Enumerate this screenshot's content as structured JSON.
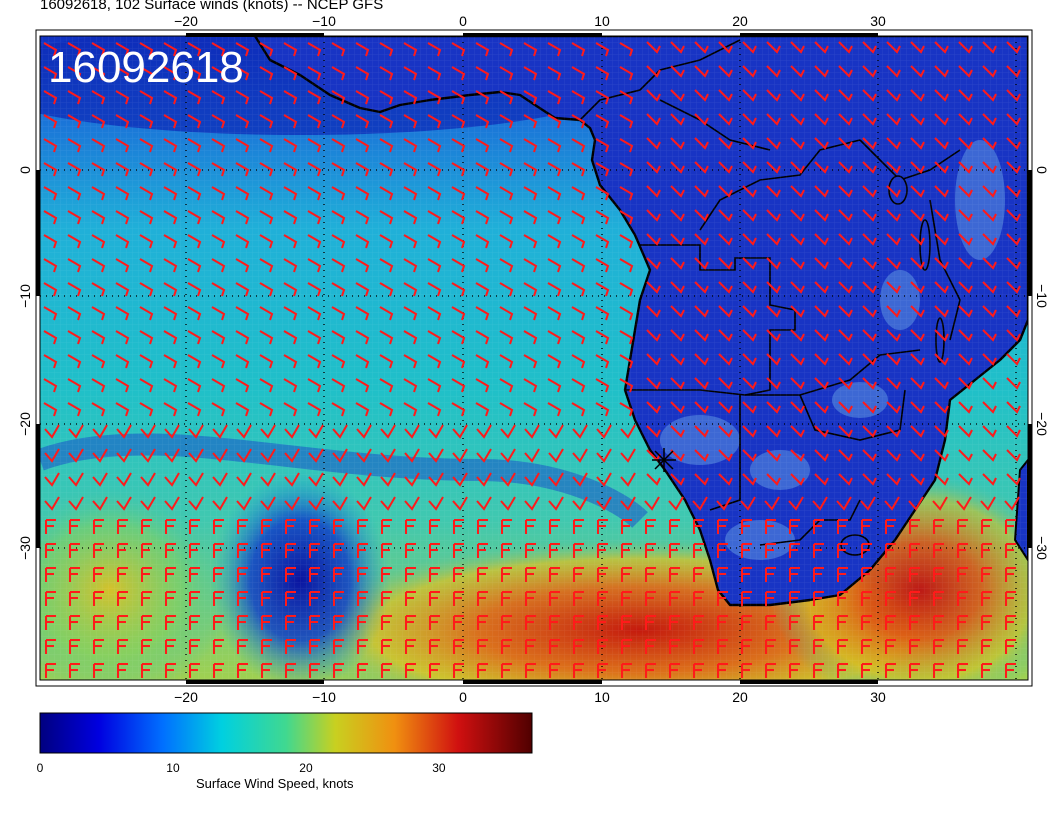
{
  "header": {
    "title": "16092618, 102 Surface winds (knots) -- NCEP GFS"
  },
  "map": {
    "stamp": "16092618",
    "lon_labels": [
      "−20",
      "−10",
      "0",
      "10",
      "20",
      "30"
    ],
    "lat_labels": [
      "0",
      "−10",
      "−20",
      "−30"
    ],
    "lon_range": [
      -30,
      40
    ],
    "lat_range": [
      -40,
      10
    ],
    "colors": {
      "ocean_low": "#0a1fa8",
      "ocean_mid": "#1ec8d0",
      "ocean_high": "#d04010",
      "land": "#1a34c8",
      "barbs": "#ff1a1a",
      "coast": "#000000"
    }
  },
  "colorbar": {
    "title": "Surface Wind Speed, knots",
    "ticks": [
      "0",
      "10",
      "20",
      "30"
    ],
    "tick_values": [
      0,
      10,
      20,
      30
    ],
    "range": [
      0,
      37
    ]
  }
}
